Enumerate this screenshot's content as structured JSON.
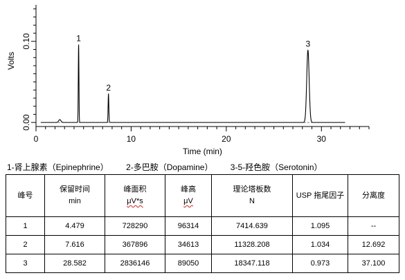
{
  "chart_data": {
    "type": "line",
    "xlabel": "Time (min)",
    "ylabel": "Volts",
    "xlim": [
      0,
      35
    ],
    "ylim": [
      -0.005,
      0.145
    ],
    "x_ticks": [
      0,
      10,
      20,
      30
    ],
    "y_ticks": [
      0.0,
      0.1
    ],
    "y_tick_labels": [
      "0.00",
      "0.10"
    ],
    "grid": false,
    "series": [
      {
        "peaks": [
          {
            "label": "1",
            "time": 4.479,
            "height": 0.096,
            "width": 0.08
          },
          {
            "label": "2",
            "time": 7.616,
            "height": 0.035,
            "width": 0.09
          },
          {
            "label": "3",
            "time": 28.582,
            "height": 0.089,
            "width": 0.3
          }
        ]
      }
    ]
  },
  "legend": {
    "items": [
      "1-肾上腺素（Epinephrine）",
      "2-多巴胺（Dopamine）",
      "3-5-羟色胺（Serotonin）"
    ]
  },
  "table": {
    "headers": [
      {
        "line1": "峰号",
        "line2": ""
      },
      {
        "line1": "保留时间",
        "line2": "min"
      },
      {
        "line1": "峰面积",
        "line2": "μV*s"
      },
      {
        "line1": "峰高",
        "line2": "μV"
      },
      {
        "line1": "理论塔板数",
        "line2": "N"
      },
      {
        "line1": "USP 拖尾因子",
        "line2": ""
      },
      {
        "line1": "分离度",
        "line2": ""
      }
    ],
    "rows": [
      [
        "1",
        "4.479",
        "728290",
        "96314",
        "7414.639",
        "1.095",
        "--"
      ],
      [
        "2",
        "7.616",
        "367896",
        "34613",
        "11328.208",
        "1.034",
        "12.692"
      ],
      [
        "3",
        "28.582",
        "2836146",
        "89050",
        "18347.118",
        "0.973",
        "37.100"
      ]
    ]
  }
}
